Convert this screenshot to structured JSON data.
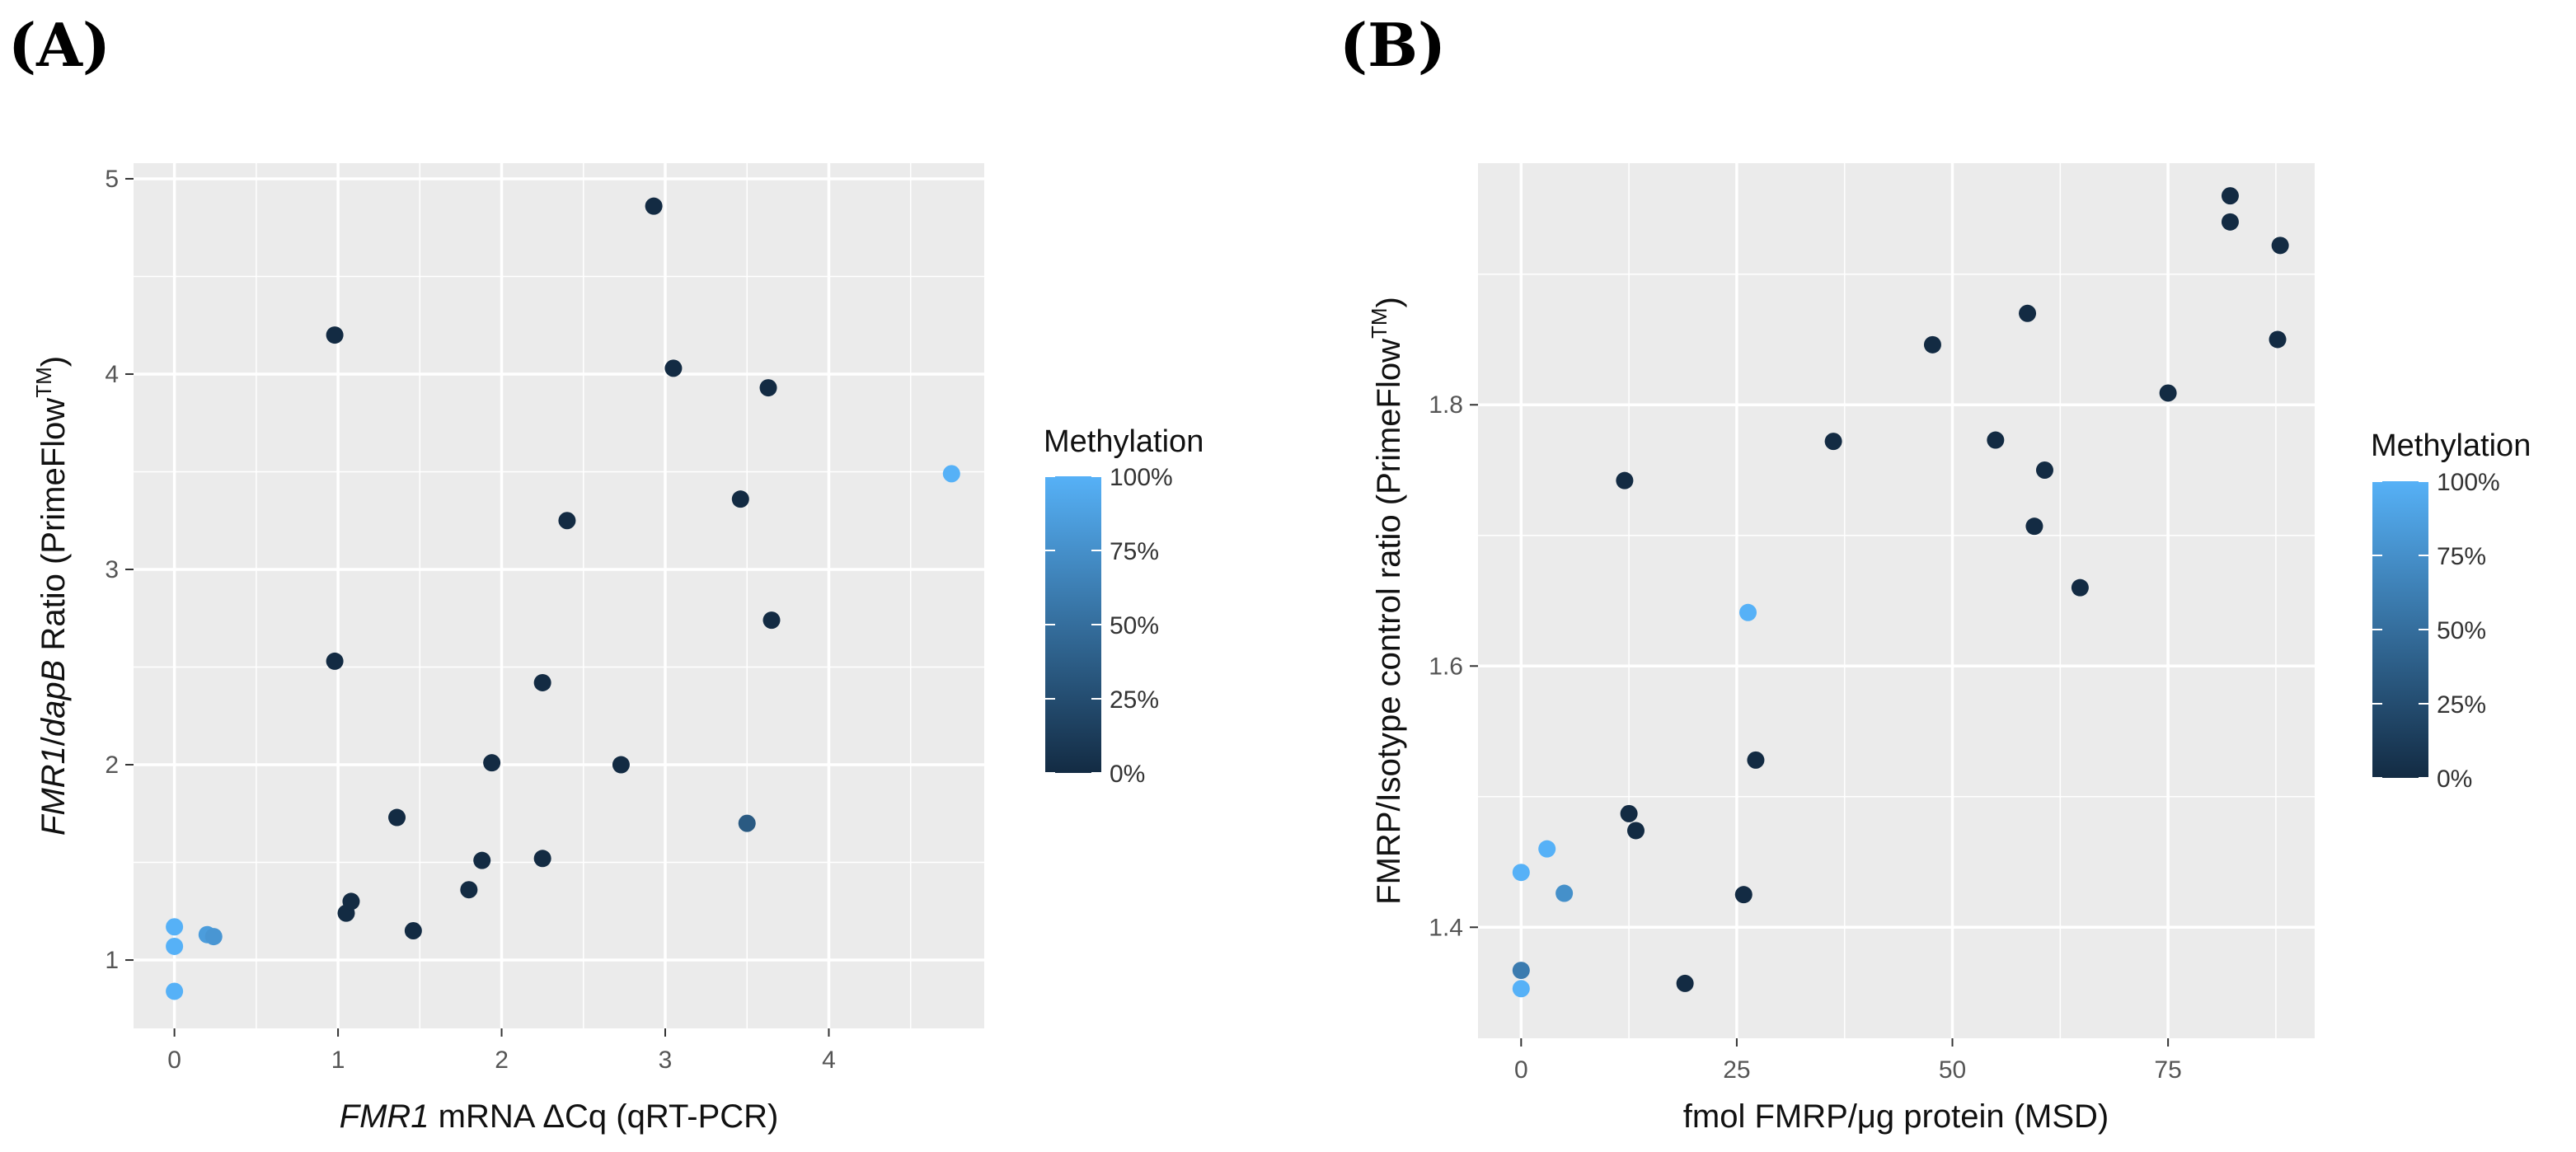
{
  "chart_data": [
    {
      "panel": "(A)",
      "type": "scatter",
      "xlabel_italic": "FMR1",
      "xlabel_rest": " mRNA ΔCq (qRT-PCR)",
      "ylabel_italic1": "FMR1",
      "ylabel_sep": "/",
      "ylabel_italic2": "dapB",
      "ylabel_rest": " Ratio (PrimeFlow",
      "ylabel_sup": "TM",
      "ylabel_close": ")",
      "xlim": [
        -0.25,
        4.95
      ],
      "ylim": [
        0.65,
        5.08
      ],
      "xticks": [
        0,
        1,
        2,
        3,
        4
      ],
      "yticks": [
        1,
        2,
        3,
        4,
        5
      ],
      "grid": true,
      "legend_title": "Methylation",
      "legend_labels": [
        "100%",
        "75%",
        "50%",
        "25%",
        "0%"
      ],
      "legend_position": "right",
      "color_low": "#132B43",
      "color_high": "#56B1F7",
      "points": [
        {
          "x": 0.0,
          "y": 1.17,
          "m": 100
        },
        {
          "x": 0.0,
          "y": 1.07,
          "m": 100
        },
        {
          "x": 0.0,
          "y": 0.84,
          "m": 100
        },
        {
          "x": 0.2,
          "y": 1.13,
          "m": 85
        },
        {
          "x": 0.24,
          "y": 1.12,
          "m": 80
        },
        {
          "x": 0.98,
          "y": 4.2,
          "m": 0
        },
        {
          "x": 0.98,
          "y": 2.53,
          "m": 0
        },
        {
          "x": 1.05,
          "y": 1.24,
          "m": 0
        },
        {
          "x": 1.08,
          "y": 1.3,
          "m": 0
        },
        {
          "x": 1.36,
          "y": 1.73,
          "m": 0
        },
        {
          "x": 1.46,
          "y": 1.15,
          "m": 0
        },
        {
          "x": 1.8,
          "y": 1.36,
          "m": 0
        },
        {
          "x": 1.88,
          "y": 1.51,
          "m": 0
        },
        {
          "x": 1.94,
          "y": 2.01,
          "m": 0
        },
        {
          "x": 2.25,
          "y": 2.42,
          "m": 0
        },
        {
          "x": 2.25,
          "y": 1.52,
          "m": 0
        },
        {
          "x": 2.4,
          "y": 3.25,
          "m": 0
        },
        {
          "x": 2.73,
          "y": 2.0,
          "m": 0
        },
        {
          "x": 2.93,
          "y": 4.86,
          "m": 0
        },
        {
          "x": 3.05,
          "y": 4.03,
          "m": 0
        },
        {
          "x": 3.46,
          "y": 3.36,
          "m": 0
        },
        {
          "x": 3.5,
          "y": 1.7,
          "m": 35
        },
        {
          "x": 3.63,
          "y": 3.93,
          "m": 0
        },
        {
          "x": 3.65,
          "y": 2.74,
          "m": 0
        },
        {
          "x": 4.75,
          "y": 3.49,
          "m": 100
        }
      ]
    },
    {
      "panel": "(B)",
      "type": "scatter",
      "xlabel": "fmol FMRP/μg protein (MSD)",
      "ylabel_rest": "FMRP/Isotype control ratio (PrimeFlow",
      "ylabel_sup": "TM",
      "ylabel_close": ")",
      "xlim": [
        -5,
        92
      ],
      "ylim": [
        1.315,
        1.985
      ],
      "xticks": [
        0,
        25,
        50,
        75
      ],
      "yticks": [
        1.4,
        1.6,
        1.8
      ],
      "ytick_labels": [
        "1.4",
        "1.6",
        "1.8"
      ],
      "grid": true,
      "legend_title": "Methylation",
      "legend_labels": [
        "100%",
        "75%",
        "50%",
        "25%",
        "0%"
      ],
      "legend_position": "right",
      "color_low": "#132B43",
      "color_high": "#56B1F7",
      "points": [
        {
          "x": 0.0,
          "y": 1.442,
          "m": 100
        },
        {
          "x": 0.0,
          "y": 1.367,
          "m": 60
        },
        {
          "x": 0.0,
          "y": 1.353,
          "m": 100
        },
        {
          "x": 3.0,
          "y": 1.46,
          "m": 100
        },
        {
          "x": 5.0,
          "y": 1.426,
          "m": 75
        },
        {
          "x": 12.0,
          "y": 1.742,
          "m": 0
        },
        {
          "x": 12.5,
          "y": 1.487,
          "m": 0
        },
        {
          "x": 13.3,
          "y": 1.474,
          "m": 0
        },
        {
          "x": 19.0,
          "y": 1.357,
          "m": 0
        },
        {
          "x": 25.8,
          "y": 1.425,
          "m": 0
        },
        {
          "x": 26.3,
          "y": 1.641,
          "m": 100
        },
        {
          "x": 27.2,
          "y": 1.528,
          "m": 0
        },
        {
          "x": 36.2,
          "y": 1.772,
          "m": 0
        },
        {
          "x": 47.7,
          "y": 1.846,
          "m": 0
        },
        {
          "x": 55.0,
          "y": 1.773,
          "m": 0
        },
        {
          "x": 58.7,
          "y": 1.87,
          "m": 0
        },
        {
          "x": 59.5,
          "y": 1.707,
          "m": 0
        },
        {
          "x": 60.7,
          "y": 1.75,
          "m": 0
        },
        {
          "x": 64.8,
          "y": 1.66,
          "m": 0
        },
        {
          "x": 75.0,
          "y": 1.809,
          "m": 0
        },
        {
          "x": 82.2,
          "y": 1.96,
          "m": 0
        },
        {
          "x": 82.2,
          "y": 1.94,
          "m": 0
        },
        {
          "x": 87.7,
          "y": 1.85,
          "m": 0
        },
        {
          "x": 88.0,
          "y": 1.922,
          "m": 0
        }
      ]
    }
  ]
}
